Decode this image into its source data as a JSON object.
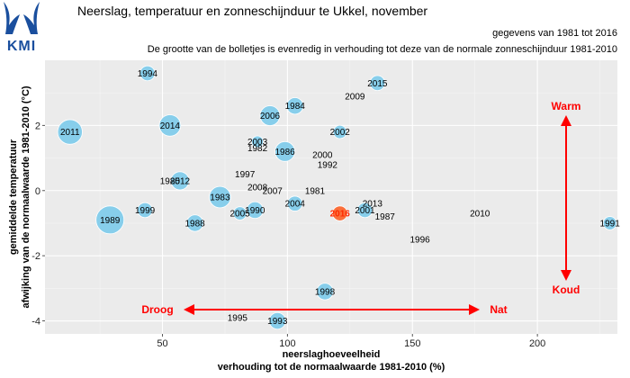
{
  "logo": {
    "text": "KMI"
  },
  "chart_data": {
    "type": "scatter",
    "title": "Neerslag, temperatuur en zonneschijnduur te Ukkel, november",
    "subtitle_1": "gegevens van 1981 tot 2016",
    "subtitle_2": "De grootte van de bolletjes is evenredig in verhouding tot deze van de normale zonneschijnduur 1981-2010",
    "xlabel_1": "neerslaghoeveelheid",
    "xlabel_2": "verhouding tot de normaalwaarde 1981-2010 (%)",
    "ylabel_1": "gemiddelde temperatuur",
    "ylabel_2": "afwijking van de normaalwaarde 1981-2010 (°C)",
    "xlim": [
      3,
      232
    ],
    "ylim": [
      -4.4,
      4.0
    ],
    "xticks": [
      50,
      100,
      150,
      200
    ],
    "yticks": [
      -4,
      -2,
      0,
      2
    ],
    "grid": true,
    "highlight_year": "2016",
    "colors": {
      "bubble": "#87ceeb",
      "panel": "#ebebeb",
      "grid": "#ffffff",
      "highlight": "#ff4500",
      "annotation": "#ff0000"
    },
    "annotations": {
      "warm": "Warm",
      "koud": "Koud",
      "droog": "Droog",
      "nat": "Nat"
    },
    "points": [
      {
        "year": "1981",
        "x": 111,
        "y": 0.0,
        "size": 0.0
      },
      {
        "year": "1982",
        "x": 88,
        "y": 1.3,
        "size": 0.0
      },
      {
        "year": "1983",
        "x": 73,
        "y": -0.2,
        "size": 1.1
      },
      {
        "year": "1984",
        "x": 103,
        "y": 2.6,
        "size": 0.8
      },
      {
        "year": "1985",
        "x": 53,
        "y": 0.3,
        "size": 0.0
      },
      {
        "year": "1986",
        "x": 99,
        "y": 1.2,
        "size": 1.0
      },
      {
        "year": "1987",
        "x": 139,
        "y": -0.8,
        "size": 0.0
      },
      {
        "year": "1988",
        "x": 63,
        "y": -1.0,
        "size": 0.8
      },
      {
        "year": "1989",
        "x": 29,
        "y": -0.9,
        "size": 1.5
      },
      {
        "year": "1990",
        "x": 87,
        "y": -0.6,
        "size": 0.8
      },
      {
        "year": "1991",
        "x": 229,
        "y": -1.0,
        "size": 0.6
      },
      {
        "year": "1992",
        "x": 116,
        "y": 0.8,
        "size": 0.0
      },
      {
        "year": "1993",
        "x": 96,
        "y": -4.0,
        "size": 0.8
      },
      {
        "year": "1994",
        "x": 44,
        "y": 3.6,
        "size": 0.7
      },
      {
        "year": "1995",
        "x": 80,
        "y": -3.9,
        "size": 0.0
      },
      {
        "year": "1996",
        "x": 153,
        "y": -1.5,
        "size": 0.0
      },
      {
        "year": "1997",
        "x": 83,
        "y": 0.5,
        "size": 0.0
      },
      {
        "year": "1998",
        "x": 115,
        "y": -3.1,
        "size": 0.8
      },
      {
        "year": "1999",
        "x": 43,
        "y": -0.6,
        "size": 0.7
      },
      {
        "year": "2000",
        "x": 114,
        "y": 1.1,
        "size": 0.0
      },
      {
        "year": "2001",
        "x": 131,
        "y": -0.6,
        "size": 0.7
      },
      {
        "year": "2002",
        "x": 121,
        "y": 1.8,
        "size": 0.6
      },
      {
        "year": "2003",
        "x": 88,
        "y": 1.5,
        "size": 0.5
      },
      {
        "year": "2004",
        "x": 103,
        "y": -0.4,
        "size": 0.7
      },
      {
        "year": "2005",
        "x": 81,
        "y": -0.7,
        "size": 0.6
      },
      {
        "year": "2006",
        "x": 93,
        "y": 2.3,
        "size": 1.0
      },
      {
        "year": "2007",
        "x": 94,
        "y": 0.0,
        "size": 0.0
      },
      {
        "year": "2008",
        "x": 88,
        "y": 0.1,
        "size": 0.0
      },
      {
        "year": "2009",
        "x": 127,
        "y": 2.9,
        "size": 0.0
      },
      {
        "year": "2010",
        "x": 177,
        "y": -0.7,
        "size": 0.0
      },
      {
        "year": "2011",
        "x": 13,
        "y": 1.8,
        "size": 1.3
      },
      {
        "year": "2012",
        "x": 57,
        "y": 0.3,
        "size": 0.9
      },
      {
        "year": "2013",
        "x": 134,
        "y": -0.4,
        "size": 0.0
      },
      {
        "year": "2014",
        "x": 53,
        "y": 2.0,
        "size": 1.1
      },
      {
        "year": "2015",
        "x": 136,
        "y": 3.3,
        "size": 0.7
      },
      {
        "year": "2016",
        "x": 121,
        "y": -0.7,
        "size": 0.7
      }
    ]
  }
}
